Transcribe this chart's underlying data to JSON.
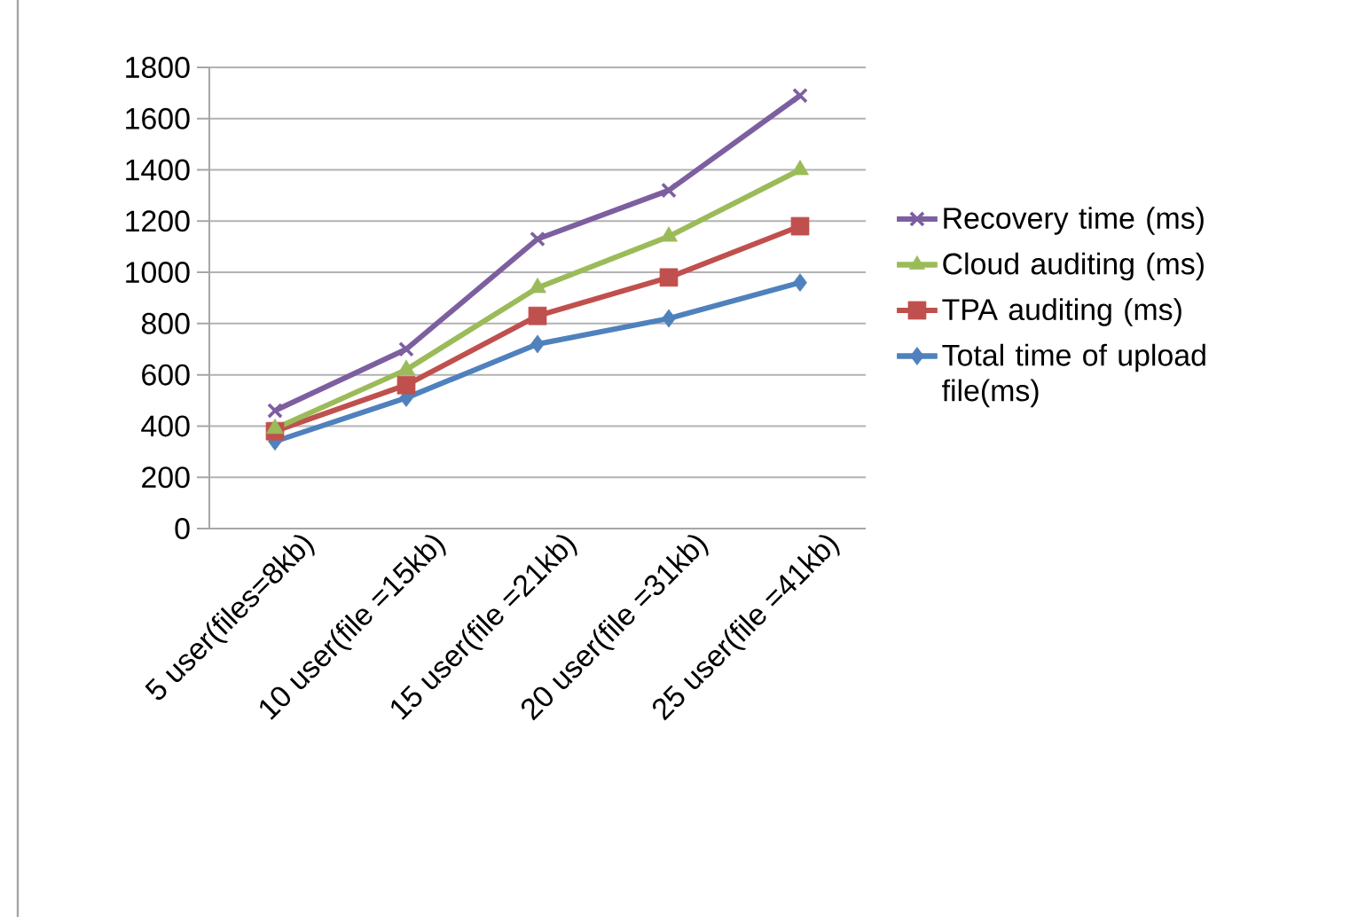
{
  "chart_data": {
    "type": "line",
    "categories": [
      "5 user(files=8kb)",
      "10 user(file =15kb)",
      "15 user(file =21kb)",
      "20 user(file =31kb)",
      "25 user(file =41kb)"
    ],
    "series": [
      {
        "name": "Recovery time (ms)",
        "color": "#7d5fa0",
        "marker": "cross",
        "values": [
          460,
          700,
          1130,
          1320,
          1690
        ]
      },
      {
        "name": "Cloud auditing (ms)",
        "color": "#9bbb59",
        "marker": "triangle",
        "values": [
          390,
          620,
          940,
          1140,
          1400
        ]
      },
      {
        "name": "TPA auditing (ms)",
        "color": "#c0504d",
        "marker": "square",
        "values": [
          380,
          560,
          830,
          980,
          1180
        ]
      },
      {
        "name": "Total time of upload file(ms)",
        "color": "#4f81bd",
        "marker": "diamond",
        "values": [
          340,
          510,
          720,
          820,
          960
        ]
      }
    ],
    "ylim": [
      0,
      1800
    ],
    "yticks": [
      0,
      200,
      400,
      600,
      800,
      1000,
      1200,
      1400,
      1600,
      1800
    ],
    "grid": "y",
    "legend": "right",
    "line_style": "solid"
  }
}
